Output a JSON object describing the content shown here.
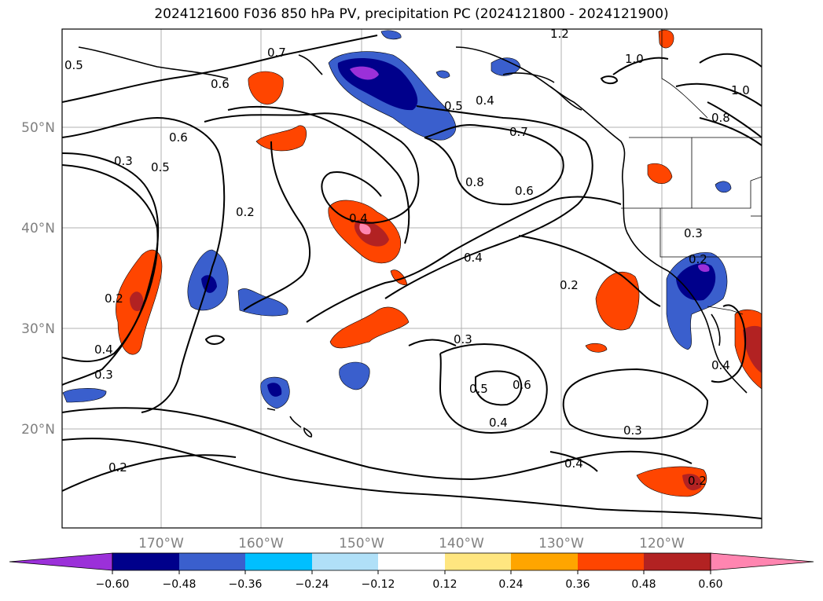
{
  "title": "2024121600 F036 850 hPa PV, precipitation PC (2024121800 - 2024121900)",
  "lat_labels": [
    "50°N",
    "40°N",
    "30°N",
    "20°N"
  ],
  "lon_labels": [
    "170°W",
    "160°W",
    "150°W",
    "140°W",
    "130°W",
    "120°W"
  ],
  "contour_labels": [
    "0.2",
    "0.3",
    "0.4",
    "0.5",
    "0.6",
    "0.7",
    "0.8",
    "1.0",
    "1.2"
  ],
  "colorbar": {
    "ticks": [
      "−0.60",
      "−0.48",
      "−0.36",
      "−0.24",
      "−0.12",
      "0.12",
      "0.24",
      "0.36",
      "0.48",
      "0.60"
    ],
    "colors": [
      "#9b30d9",
      "#00008b",
      "#3a5fcd",
      "#00bfff",
      "#b0e0f8",
      "#ffffff",
      "#ffe680",
      "#ffa500",
      "#ff4500",
      "#b22222",
      "#ff85b0"
    ]
  }
}
